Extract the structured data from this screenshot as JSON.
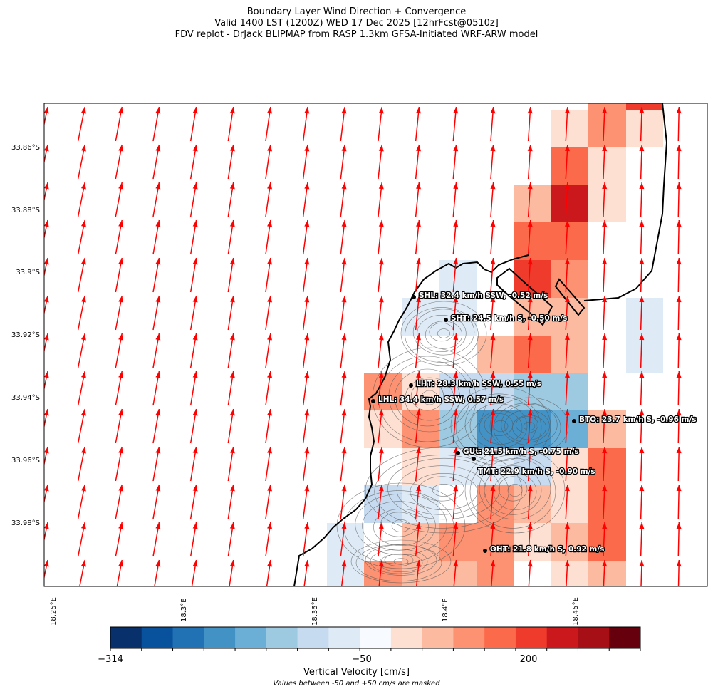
{
  "title": {
    "line1": "Boundary Layer Wind Direction + Convergence",
    "line2": "Valid 1400 LST (1200Z) WED 17 Dec 2025 [12hrFcst@0510z]",
    "line3": "FDV replot - DrJack BLIPMAP from RASP 1.3km GFSA-Initiated WRF-ARW model"
  },
  "axes": {
    "lat_ticks": [
      "33.86°S",
      "33.88°S",
      "33.9°S",
      "33.92°S",
      "33.94°S",
      "33.96°S",
      "33.98°S"
    ],
    "lon_ticks": [
      "18.25°E",
      "18.3°E",
      "18.35°E",
      "18.4°E",
      "18.45°E"
    ]
  },
  "colors": {
    "wind_vectors": "#ff0000",
    "coastline": "#000000",
    "terrain_contours": "#555555"
  },
  "stations": [
    {
      "id": "SHL",
      "label": "SHL: 32.4 km/h SSW, -0.52 m/s"
    },
    {
      "id": "SHT",
      "label": "SHT: 24.5 km/h S, -0.50 m/s"
    },
    {
      "id": "LHT",
      "label": "LHT: 28.3 km/h SSW, 0.55 m/s"
    },
    {
      "id": "LHL",
      "label": "LHL: 34.4 km/h SSW, 0.57 m/s"
    },
    {
      "id": "BTO",
      "label": "BTO: 23.7 km/h S, -0.96 m/s"
    },
    {
      "id": "GUt",
      "label": "GUt: 21.5 km/h S, -0.75 m/s"
    },
    {
      "id": "TMT",
      "label": "TMT: 22.9 km/h S, -0.90 m/s"
    },
    {
      "id": "OHT",
      "label": "OHT: 21.8 km/h S, 0.92 m/s"
    }
  ],
  "colorbar": {
    "title": "Vertical Velocity [cm/s]",
    "note": "Values between -50 and +50 cm/s are masked",
    "tick_labels": [
      "−314",
      "−50",
      "200"
    ],
    "colors": [
      "#08306b",
      "#08519c",
      "#2171b5",
      "#4292c6",
      "#6baed6",
      "#9ecae1",
      "#c6dbef",
      "#deebf7",
      "#f7fbff",
      "#fee0d2",
      "#fcbba1",
      "#fc9272",
      "#fb6a4a",
      "#ef3b2c",
      "#cb181d",
      "#a50f15",
      "#67000d"
    ]
  }
}
